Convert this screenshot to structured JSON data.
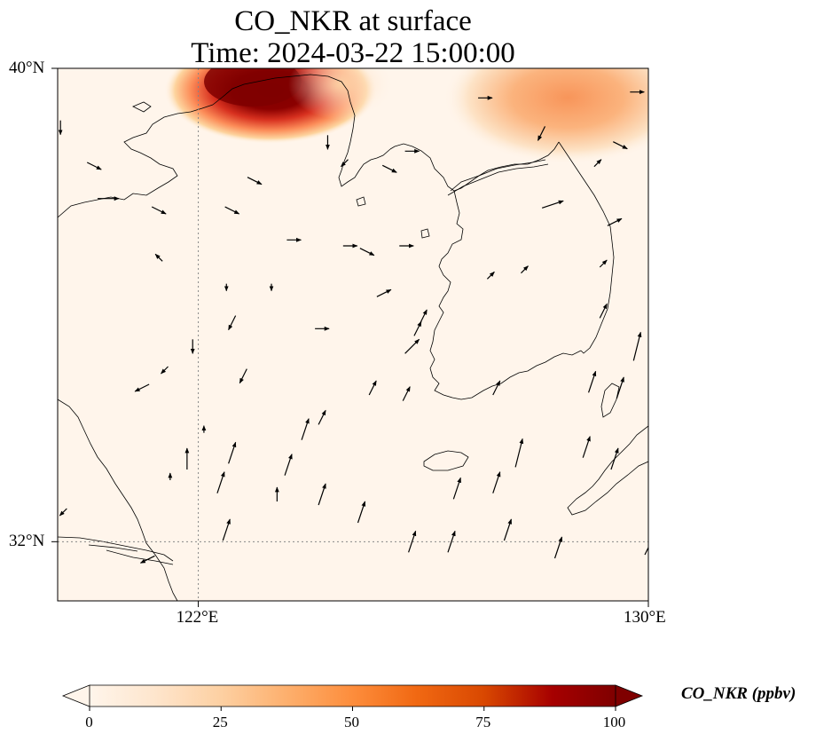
{
  "title": {
    "line1": "CO_NKR at surface",
    "line2": "Time: 2024-03-22 15:00:00"
  },
  "map": {
    "lon_range": [
      119.5,
      130
    ],
    "lat_range": [
      31,
      40
    ],
    "grid_color": "#888888",
    "lat_ticks": [
      {
        "value": 40,
        "label": "40°N"
      },
      {
        "value": 32,
        "label": "32°N"
      }
    ],
    "lon_ticks": [
      {
        "value": 122,
        "label": "122°E"
      },
      {
        "value": 130,
        "label": "130°E"
      }
    ],
    "grid_lines": {
      "lon": [
        122
      ],
      "lat": [
        32
      ]
    }
  },
  "colorbar": {
    "label": "CO_NKR (ppbv)",
    "min": 0,
    "max": 100,
    "extend": "both",
    "ticks": [
      {
        "value": 0,
        "label": "0"
      },
      {
        "value": 25,
        "label": "25"
      },
      {
        "value": 50,
        "label": "50"
      },
      {
        "value": 75,
        "label": "75"
      },
      {
        "value": 100,
        "label": "100"
      }
    ],
    "colors": [
      "#fff5eb",
      "#fee6ce",
      "#fdd0a2",
      "#fdae6b",
      "#fd8d3c",
      "#f16913",
      "#d94801",
      "#a60000",
      "#7f0000"
    ]
  },
  "chart_data": {
    "type": "heatmap",
    "variable": "CO_NKR",
    "units": "ppbv",
    "level": "surface",
    "time": "2024-03-22 15:00:00",
    "plumes": [
      {
        "region": "northwest (near 122.5-124.5°E, 39.3-40°N)",
        "peak_ppbv": 100
      },
      {
        "region": "northeast (near 127.5-130°E, 38.2-40°N)",
        "peak_ppbv": 35
      }
    ],
    "background_ppbv": 2,
    "wind_vectors": [
      {
        "lon": 119.55,
        "lat": 39.0,
        "u": 0,
        "v": -2
      },
      {
        "lon": 120.15,
        "lat": 38.35,
        "u": 2,
        "v": -1
      },
      {
        "lon": 120.4,
        "lat": 37.8,
        "u": 3,
        "v": 0
      },
      {
        "lon": 121.3,
        "lat": 37.6,
        "u": 2,
        "v": -1
      },
      {
        "lon": 121.3,
        "lat": 36.8,
        "u": -1,
        "v": 1
      },
      {
        "lon": 122.6,
        "lat": 37.6,
        "u": 2,
        "v": -1
      },
      {
        "lon": 123.0,
        "lat": 38.1,
        "u": 2,
        "v": -1
      },
      {
        "lon": 124.3,
        "lat": 38.75,
        "u": 0,
        "v": -2
      },
      {
        "lon": 124.6,
        "lat": 38.4,
        "u": -1,
        "v": -1
      },
      {
        "lon": 124.7,
        "lat": 37.0,
        "u": 2,
        "v": 0
      },
      {
        "lon": 125.0,
        "lat": 36.9,
        "u": 2,
        "v": -1
      },
      {
        "lon": 125.7,
        "lat": 37.0,
        "u": 2,
        "v": 0
      },
      {
        "lon": 125.3,
        "lat": 36.2,
        "u": 2,
        "v": 1
      },
      {
        "lon": 125.8,
        "lat": 35.3,
        "u": 2,
        "v": 2
      },
      {
        "lon": 126.0,
        "lat": 35.8,
        "u": 1,
        "v": 2
      },
      {
        "lon": 127.2,
        "lat": 36.5,
        "u": 1,
        "v": 1
      },
      {
        "lon": 127.8,
        "lat": 36.6,
        "u": 1,
        "v": 1
      },
      {
        "lon": 129.2,
        "lat": 36.7,
        "u": 1,
        "v": 1
      },
      {
        "lon": 129.4,
        "lat": 37.4,
        "u": 2,
        "v": 1
      },
      {
        "lon": 128.3,
        "lat": 37.7,
        "u": 3,
        "v": 1
      },
      {
        "lon": 128.1,
        "lat": 38.9,
        "u": -1,
        "v": -2
      },
      {
        "lon": 127.1,
        "lat": 39.5,
        "u": 2,
        "v": 0
      },
      {
        "lon": 129.8,
        "lat": 39.6,
        "u": 2,
        "v": 0
      },
      {
        "lon": 129.5,
        "lat": 38.7,
        "u": 2,
        "v": -1
      },
      {
        "lon": 129.2,
        "lat": 35.9,
        "u": 1,
        "v": 2
      },
      {
        "lon": 129.8,
        "lat": 35.3,
        "u": 1,
        "v": 4
      },
      {
        "lon": 129.0,
        "lat": 34.7,
        "u": 1,
        "v": 3
      },
      {
        "lon": 125.1,
        "lat": 34.6,
        "u": 1,
        "v": 2
      },
      {
        "lon": 124.2,
        "lat": 34.1,
        "u": 1,
        "v": 2
      },
      {
        "lon": 125.7,
        "lat": 34.5,
        "u": 1,
        "v": 2
      },
      {
        "lon": 127.3,
        "lat": 34.6,
        "u": 1,
        "v": 2
      },
      {
        "lon": 127.7,
        "lat": 33.5,
        "u": 1,
        "v": 4
      },
      {
        "lon": 127.3,
        "lat": 33.0,
        "u": 1,
        "v": 3
      },
      {
        "lon": 126.6,
        "lat": 32.9,
        "u": 1,
        "v": 3
      },
      {
        "lon": 126.5,
        "lat": 32.0,
        "u": 1,
        "v": 3
      },
      {
        "lon": 124.9,
        "lat": 32.5,
        "u": 1,
        "v": 3
      },
      {
        "lon": 124.2,
        "lat": 32.8,
        "u": 1,
        "v": 3
      },
      {
        "lon": 123.6,
        "lat": 33.3,
        "u": 1,
        "v": 3
      },
      {
        "lon": 122.5,
        "lat": 32.2,
        "u": 1,
        "v": 3
      },
      {
        "lon": 122.4,
        "lat": 33.0,
        "u": 1,
        "v": 3
      },
      {
        "lon": 122.6,
        "lat": 33.5,
        "u": 1,
        "v": 3
      },
      {
        "lon": 122.1,
        "lat": 33.9,
        "u": 0,
        "v": 1
      },
      {
        "lon": 121.5,
        "lat": 33.1,
        "u": 0,
        "v": 1
      },
      {
        "lon": 121.0,
        "lat": 34.6,
        "u": -2,
        "v": -1
      },
      {
        "lon": 121.4,
        "lat": 34.9,
        "u": -1,
        "v": -1
      },
      {
        "lon": 121.9,
        "lat": 35.3,
        "u": 0,
        "v": -2
      },
      {
        "lon": 122.5,
        "lat": 36.3,
        "u": 0,
        "v": -1
      },
      {
        "lon": 123.3,
        "lat": 36.3,
        "u": 0,
        "v": -1
      },
      {
        "lon": 124.2,
        "lat": 35.6,
        "u": 2,
        "v": 0
      },
      {
        "lon": 122.6,
        "lat": 35.7,
        "u": -1,
        "v": -2
      },
      {
        "lon": 122.8,
        "lat": 34.8,
        "u": -1,
        "v": -2
      },
      {
        "lon": 125.8,
        "lat": 32.0,
        "u": 1,
        "v": 3
      },
      {
        "lon": 127.5,
        "lat": 32.2,
        "u": 1,
        "v": 3
      },
      {
        "lon": 128.4,
        "lat": 31.9,
        "u": 1,
        "v": 3
      },
      {
        "lon": 128.9,
        "lat": 33.6,
        "u": 1,
        "v": 3
      },
      {
        "lon": 129.4,
        "lat": 33.4,
        "u": 1,
        "v": 3
      },
      {
        "lon": 130.0,
        "lat": 31.9,
        "u": 1,
        "v": 2
      },
      {
        "lon": 123.4,
        "lat": 32.8,
        "u": 0,
        "v": 2
      },
      {
        "lon": 123.9,
        "lat": 33.9,
        "u": 1,
        "v": 3
      },
      {
        "lon": 121.8,
        "lat": 33.4,
        "u": 0,
        "v": 3
      },
      {
        "lon": 121.1,
        "lat": 31.7,
        "u": -2,
        "v": -1
      },
      {
        "lon": 119.6,
        "lat": 32.5,
        "u": -1,
        "v": -1
      },
      {
        "lon": 123.7,
        "lat": 37.1,
        "u": 2,
        "v": 0
      },
      {
        "lon": 125.8,
        "lat": 38.6,
        "u": 2,
        "v": 0
      },
      {
        "lon": 125.4,
        "lat": 38.3,
        "u": 2,
        "v": -1
      },
      {
        "lon": 129.1,
        "lat": 38.4,
        "u": 1,
        "v": 1
      },
      {
        "lon": 129.5,
        "lat": 34.6,
        "u": 1,
        "v": 3
      },
      {
        "lon": 125.9,
        "lat": 35.6,
        "u": 1,
        "v": 2
      }
    ]
  }
}
